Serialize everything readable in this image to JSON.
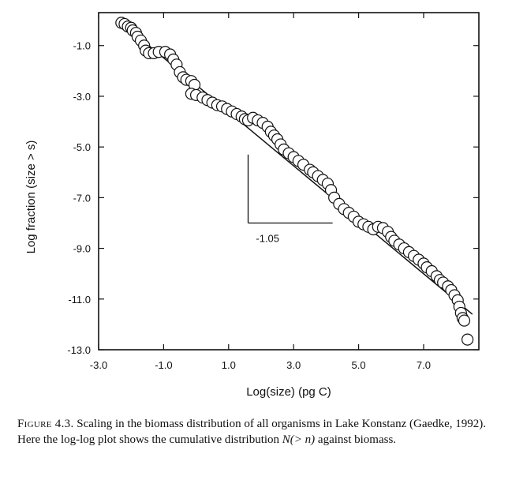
{
  "chart_data": {
    "type": "scatter",
    "title": "",
    "xlabel": "Log(size) (pg C)",
    "ylabel": "Log fraction (size > s)",
    "xlim": [
      -3.0,
      8.7
    ],
    "ylim": [
      -13.0,
      0.3
    ],
    "xticks": [
      "-3.0",
      "-1.0",
      "1.0",
      "3.0",
      "5.0",
      "7.0"
    ],
    "yticks": [
      "-1.0",
      "-3.0",
      "-5.0",
      "-7.0",
      "-9.0",
      "-11.0",
      "-13.0"
    ],
    "grid": false,
    "legend": "none",
    "series": [
      {
        "points": [
          [
            -2.3,
            -0.1
          ],
          [
            -2.2,
            -0.15
          ],
          [
            -2.1,
            -0.25
          ],
          [
            -2.0,
            -0.3
          ],
          [
            -1.95,
            -0.4
          ],
          [
            -1.85,
            -0.5
          ],
          [
            -1.8,
            -0.65
          ],
          [
            -1.7,
            -0.8
          ],
          [
            -1.6,
            -1.0
          ],
          [
            -1.55,
            -1.2
          ],
          [
            -1.45,
            -1.3
          ],
          [
            -1.3,
            -1.3
          ],
          [
            -1.15,
            -1.25
          ],
          [
            -0.95,
            -1.25
          ],
          [
            -0.8,
            -1.35
          ],
          [
            -0.7,
            -1.55
          ],
          [
            -0.6,
            -1.75
          ],
          [
            -0.5,
            -2.05
          ],
          [
            -0.4,
            -2.25
          ],
          [
            -0.3,
            -2.35
          ],
          [
            -0.15,
            -2.4
          ],
          [
            -0.05,
            -2.55
          ],
          [
            -0.15,
            -2.9
          ],
          [
            0.0,
            -2.95
          ],
          [
            0.2,
            -3.05
          ],
          [
            0.35,
            -3.15
          ],
          [
            0.5,
            -3.25
          ],
          [
            0.65,
            -3.35
          ],
          [
            0.8,
            -3.4
          ],
          [
            0.95,
            -3.5
          ],
          [
            1.1,
            -3.6
          ],
          [
            1.25,
            -3.7
          ],
          [
            1.4,
            -3.8
          ],
          [
            1.5,
            -3.9
          ],
          [
            1.6,
            -3.95
          ],
          [
            1.75,
            -3.85
          ],
          [
            1.9,
            -3.95
          ],
          [
            2.05,
            -4.05
          ],
          [
            2.2,
            -4.2
          ],
          [
            2.3,
            -4.4
          ],
          [
            2.4,
            -4.55
          ],
          [
            2.5,
            -4.7
          ],
          [
            2.6,
            -4.9
          ],
          [
            2.7,
            -5.1
          ],
          [
            2.85,
            -5.25
          ],
          [
            3.0,
            -5.4
          ],
          [
            3.15,
            -5.55
          ],
          [
            3.3,
            -5.7
          ],
          [
            3.5,
            -5.9
          ],
          [
            3.6,
            -6.0
          ],
          [
            3.75,
            -6.15
          ],
          [
            3.9,
            -6.3
          ],
          [
            4.05,
            -6.45
          ],
          [
            4.15,
            -6.7
          ],
          [
            4.25,
            -7.0
          ],
          [
            4.4,
            -7.25
          ],
          [
            4.55,
            -7.45
          ],
          [
            4.7,
            -7.6
          ],
          [
            4.85,
            -7.75
          ],
          [
            5.0,
            -7.95
          ],
          [
            5.15,
            -8.05
          ],
          [
            5.3,
            -8.15
          ],
          [
            5.45,
            -8.25
          ],
          [
            5.6,
            -8.15
          ],
          [
            5.75,
            -8.2
          ],
          [
            5.9,
            -8.35
          ],
          [
            6.0,
            -8.55
          ],
          [
            6.1,
            -8.7
          ],
          [
            6.25,
            -8.85
          ],
          [
            6.4,
            -9.0
          ],
          [
            6.55,
            -9.15
          ],
          [
            6.7,
            -9.3
          ],
          [
            6.85,
            -9.45
          ],
          [
            7.0,
            -9.6
          ],
          [
            7.1,
            -9.75
          ],
          [
            7.25,
            -9.9
          ],
          [
            7.4,
            -10.1
          ],
          [
            7.5,
            -10.25
          ],
          [
            7.6,
            -10.35
          ],
          [
            7.75,
            -10.5
          ],
          [
            7.85,
            -10.65
          ],
          [
            7.95,
            -10.85
          ],
          [
            8.05,
            -11.05
          ],
          [
            8.1,
            -11.3
          ],
          [
            8.15,
            -11.55
          ],
          [
            8.2,
            -11.75
          ],
          [
            8.25,
            -11.85
          ],
          [
            8.35,
            -12.6
          ]
        ]
      }
    ],
    "fit_line": {
      "x": [
        -2.3,
        8.5
      ],
      "y": [
        -0.1,
        -11.6
      ],
      "slope": -1.05
    },
    "annotations": [
      {
        "text": "-1.05"
      }
    ]
  },
  "caption": {
    "label": "Figure 4.3.",
    "text_before": " Scaling in the biomass distribution of all organisms in Lake Konstanz (Gaedke, 1992). Here the log-log plot shows the cumulative distribution ",
    "math": "N(> n)",
    "text_after": " against biomass."
  }
}
